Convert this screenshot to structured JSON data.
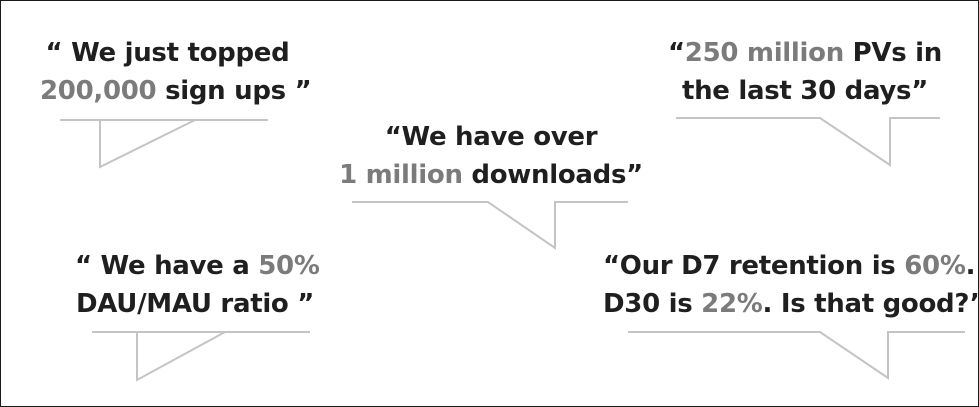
{
  "quotes": [
    {
      "id": "signups",
      "line1": [
        "“ We just topped"
      ],
      "line2_highlight": "200,000",
      "line2_rest": " sign ups ”"
    },
    {
      "id": "downloads",
      "line1": [
        "“We have over"
      ],
      "line2_highlight": "1 million",
      "line2_rest": " downloads”"
    },
    {
      "id": "pageviews",
      "line1_open": "“",
      "line1_highlight": "250 million",
      "line1_rest": " PVs in",
      "line2": "the last 30 days”"
    },
    {
      "id": "dau-mau",
      "line1_text": "“ We have a ",
      "line1_highlight": "50%",
      "line2": "DAU/MAU ratio ”"
    },
    {
      "id": "retention",
      "line1_text": "“Our D7 retention is ",
      "line1_highlight": "60%",
      "line1_end": ".",
      "line2_text": "D30 is ",
      "line2_highlight": "22%",
      "line2_end": ". Is that good?”"
    }
  ],
  "colors": {
    "text": "#1f1f1f",
    "highlight": "#7b7b7b",
    "bubble_line": "#c4c4c4",
    "border": "#1a1a1a"
  }
}
